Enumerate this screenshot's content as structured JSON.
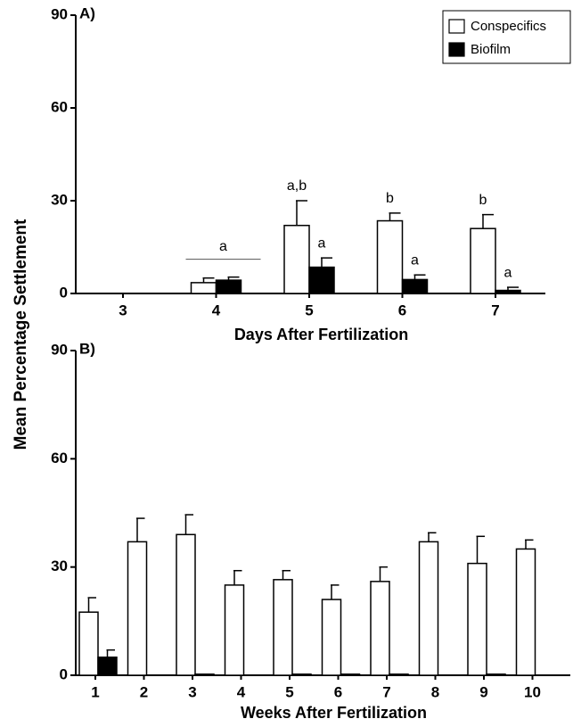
{
  "chart_data": [
    {
      "type": "bar",
      "title": "A)",
      "ylabel": "Mean Percentage Settlement",
      "xlabel": "Days After Fertilization",
      "categories": [
        "3",
        "4",
        "5",
        "6",
        "7"
      ],
      "series": [
        {
          "name": "Conspecifics",
          "color": "#ffffff",
          "values": [
            0,
            3.5,
            22,
            23.5,
            21
          ],
          "errors": [
            0,
            1.5,
            8,
            2.5,
            4.5
          ],
          "letters": [
            null,
            null,
            "a,b",
            "b",
            "b"
          ]
        },
        {
          "name": "Biofilm",
          "color": "#000000",
          "values": [
            0,
            4.3,
            8.5,
            4.5,
            1
          ],
          "errors": [
            0,
            1,
            3,
            1.5,
            1
          ],
          "letters": [
            null,
            null,
            "a",
            "a",
            "a"
          ]
        }
      ],
      "group_letters": [
        null,
        "a",
        null,
        null,
        null
      ],
      "ylim": [
        0,
        90
      ],
      "yticks": [
        0,
        30,
        60,
        90
      ],
      "legend": "upper right"
    },
    {
      "type": "bar",
      "title": "B)",
      "xlabel": "Weeks After Fertilization",
      "categories": [
        "1",
        "2",
        "3",
        "4",
        "5",
        "6",
        "7",
        "8",
        "9",
        "10"
      ],
      "series": [
        {
          "color": "#ffffff",
          "values": [
            17.5,
            37,
            39,
            25,
            26.5,
            21,
            26,
            37,
            31,
            35
          ],
          "errors": [
            4,
            6.5,
            5.5,
            4,
            2.5,
            4,
            4,
            2.5,
            7.5,
            2.5
          ]
        },
        {
          "color": "#000000",
          "values": [
            5,
            0,
            0.3,
            0,
            0.3,
            0.3,
            0.3,
            0,
            0.3,
            0
          ],
          "errors": [
            2,
            0,
            0,
            0,
            0,
            0,
            0,
            0,
            0,
            0
          ]
        }
      ],
      "ylim": [
        0,
        90
      ],
      "yticks": [
        0,
        30,
        60,
        90
      ]
    }
  ]
}
